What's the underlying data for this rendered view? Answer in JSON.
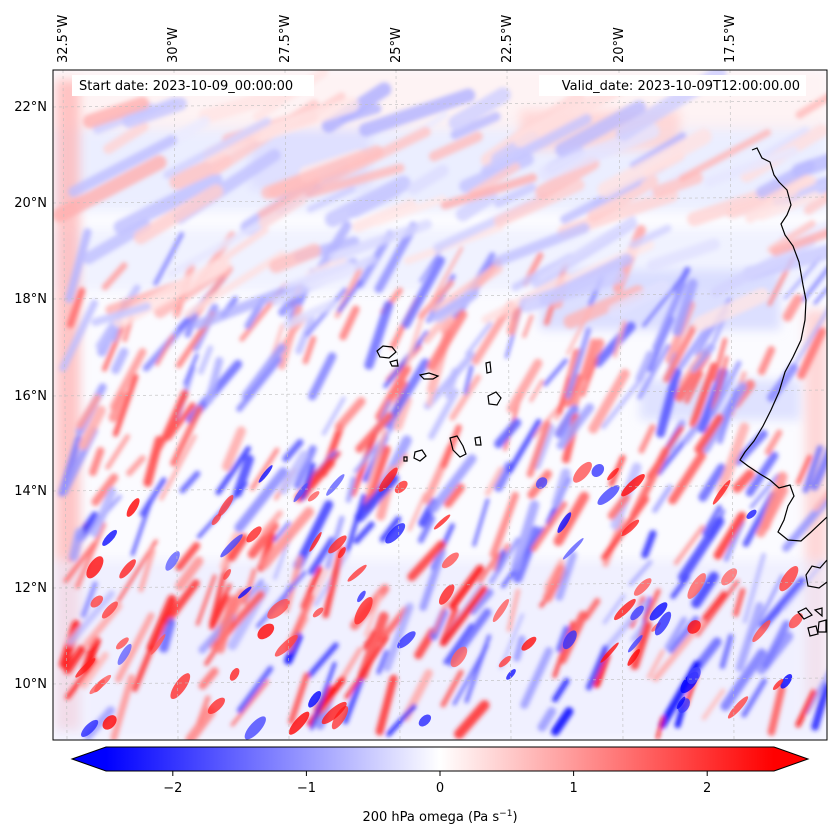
{
  "map": {
    "start_date_text": "Start date: 2023-10-09_00:00:00",
    "valid_date_text": "Valid_date: 2023-10-09T12:00:00.00",
    "longitude_labels": [
      "32.5°W",
      "30°W",
      "27.5°W",
      "25°W",
      "22.5°W",
      "20°W",
      "17.5°W"
    ],
    "latitude_labels": [
      "22°N",
      "20°N",
      "18°N",
      "16°N",
      "14°N",
      "12°N",
      "10°N"
    ],
    "field": "200 hPa omega",
    "colors": {
      "negative": "#0000ff",
      "zero": "#ffffff",
      "positive": "#ff0000",
      "coast": "#000000"
    }
  },
  "colorbar": {
    "label_main": "200 hPa omega (Pa s",
    "label_sup": "−1",
    "label_close": ")",
    "ticks": [
      "−2",
      "−1",
      "0",
      "1",
      "2"
    ],
    "tick_values": [
      -2,
      -1,
      0,
      1,
      2
    ],
    "range": [
      -2.5,
      2.5
    ],
    "extend": "both"
  }
}
